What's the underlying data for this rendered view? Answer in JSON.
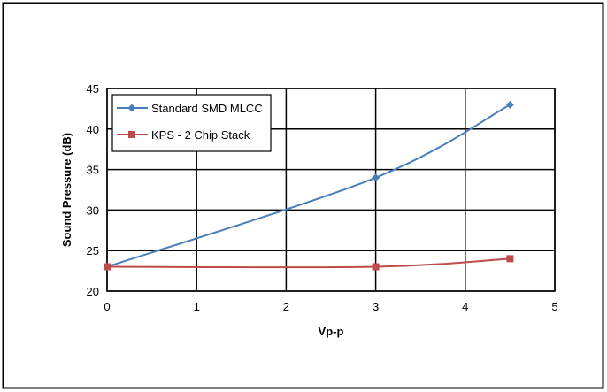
{
  "chart_data": {
    "type": "line",
    "xlabel": "Vp-p",
    "ylabel": "Sound Pressure (dB)",
    "xlim": [
      0,
      5
    ],
    "ylim": [
      20,
      45
    ],
    "xticks": [
      "0",
      "1",
      "2",
      "3",
      "4",
      "5"
    ],
    "yticks": [
      "20",
      "25",
      "30",
      "35",
      "40",
      "45"
    ],
    "grid": true,
    "legend_position": "top-left",
    "series": [
      {
        "name": "Standard SMD MLCC",
        "color": "#4a7ebb",
        "marker": "diamond",
        "x": [
          0,
          3,
          4.5
        ],
        "y": [
          23,
          34,
          43
        ]
      },
      {
        "name": "KPS - 2 Chip Stack",
        "color": "#be4b48",
        "marker": "square",
        "x": [
          0,
          3,
          4.5
        ],
        "y": [
          23,
          23,
          24
        ]
      }
    ]
  }
}
